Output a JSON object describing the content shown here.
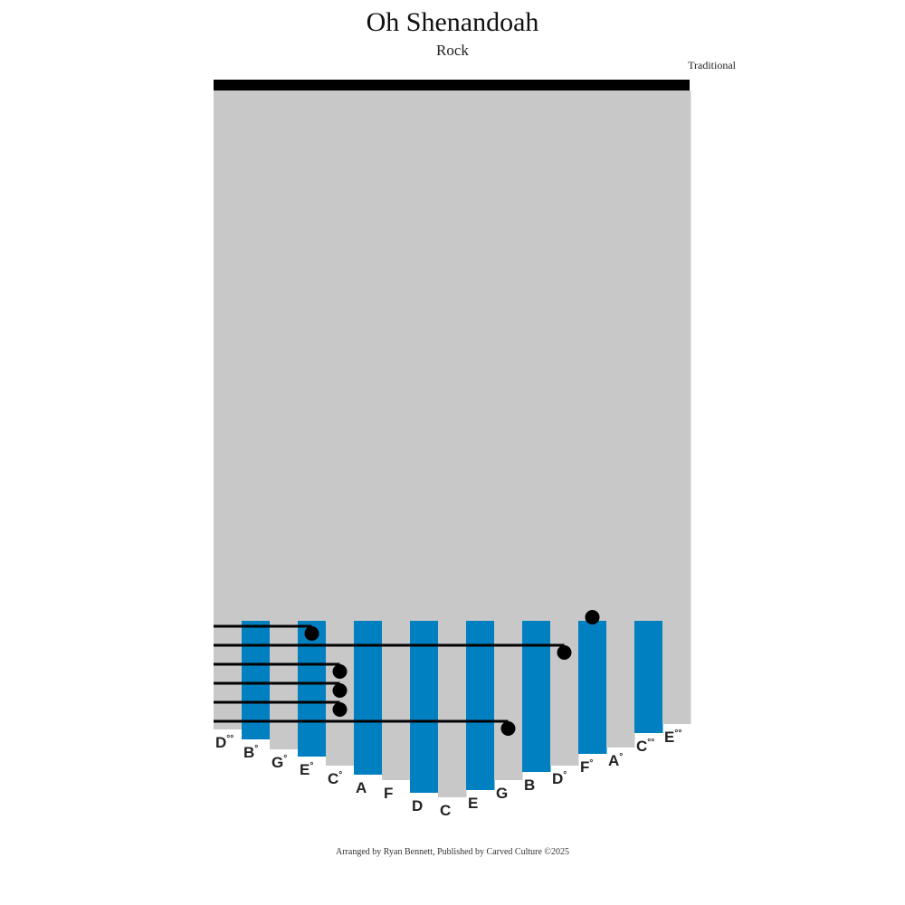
{
  "title": "Oh Shenandoah",
  "subtitle": "Rock",
  "composer": "Traditional",
  "footer": "Arranged by Ryan Bennett, Published by Carved Culture ©2025",
  "colors": {
    "tine_blue": "#0080c0",
    "tine_gray": "#c8c8c8",
    "bar": "#000000"
  },
  "tines": [
    {
      "note": "D",
      "dots": "°°",
      "color": "gray"
    },
    {
      "note": "B",
      "dots": "°",
      "color": "blue"
    },
    {
      "note": "G",
      "dots": "°",
      "color": "gray"
    },
    {
      "note": "E",
      "dots": "°",
      "color": "blue"
    },
    {
      "note": "C",
      "dots": "°",
      "color": "gray"
    },
    {
      "note": "A",
      "dots": "",
      "color": "blue"
    },
    {
      "note": "F",
      "dots": "",
      "color": "gray"
    },
    {
      "note": "D",
      "dots": "",
      "color": "blue"
    },
    {
      "note": "C",
      "dots": "",
      "color": "gray"
    },
    {
      "note": "E",
      "dots": "",
      "color": "blue"
    },
    {
      "note": "G",
      "dots": "",
      "color": "gray"
    },
    {
      "note": "B",
      "dots": "",
      "color": "blue"
    },
    {
      "note": "D",
      "dots": "°",
      "color": "gray"
    },
    {
      "note": "F",
      "dots": "°",
      "color": "blue"
    },
    {
      "note": "A",
      "dots": "°",
      "color": "gray"
    },
    {
      "note": "C",
      "dots": "°°",
      "color": "blue"
    },
    {
      "note": "E",
      "dots": "°°",
      "color": "gray"
    }
  ],
  "notes_played": [
    {
      "tine_index": 13,
      "partial": true
    },
    {
      "tine_index": 3
    },
    {
      "tine_index": 12
    },
    {
      "tine_index": 4
    },
    {
      "tine_index": 4
    },
    {
      "tine_index": 4
    },
    {
      "tine_index": 10
    }
  ]
}
